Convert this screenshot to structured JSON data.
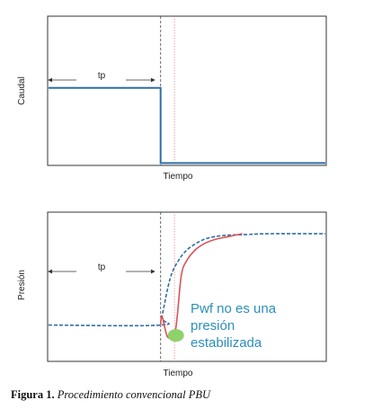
{
  "colors": {
    "rate_line": "#2f6fa6",
    "pressure_ideal": "#2f6fa6",
    "pressure_actual": "#d9545a",
    "shutin_marker": "#444444",
    "stabilization_marker": "#e58a8a",
    "annotation_text": "#2c8fb9",
    "annotation_dot": "#8fd16a",
    "frame": "#333333"
  },
  "chart_data": [
    {
      "type": "line",
      "title": "",
      "xlabel": "Tiempo",
      "ylabel": "Caudal",
      "ticks": "none",
      "grid": false,
      "x_domain": [
        0,
        1
      ],
      "y_domain": [
        0,
        1
      ],
      "shut_in_time": 0.405,
      "stabilization_time": 0.455,
      "tp_label": "tp",
      "series": [
        {
          "role": "caudal",
          "x": [
            0,
            0.405,
            0.405,
            1
          ],
          "y": [
            0.52,
            0.52,
            0.01,
            0.01
          ]
        }
      ]
    },
    {
      "type": "line",
      "title": "",
      "xlabel": "Tiempo",
      "ylabel": "Presión",
      "ticks": "none",
      "grid": false,
      "x_domain": [
        0,
        1
      ],
      "y_domain": [
        0,
        1
      ],
      "shut_in_time": 0.405,
      "stabilization_time": 0.455,
      "tp_label": "tp",
      "annotation": {
        "lines": [
          "Pwf  no es una",
          "presión",
          "estabilizada"
        ],
        "point": {
          "x": 0.46,
          "y": 0.17
        }
      },
      "series": [
        {
          "role": "ideal",
          "style": "dashed",
          "x": [
            0,
            0.405,
            0.41,
            0.44,
            0.47,
            0.5,
            0.53,
            0.56,
            0.6,
            0.65,
            0.72,
            0.8,
            1
          ],
          "y": [
            0.24,
            0.24,
            0.3,
            0.56,
            0.68,
            0.75,
            0.79,
            0.82,
            0.84,
            0.85,
            0.855,
            0.86,
            0.86
          ]
        },
        {
          "role": "real",
          "style": "solid",
          "x": [
            0.405,
            0.41,
            0.43,
            0.455,
            0.465,
            0.48,
            0.5,
            0.53,
            0.56,
            0.6,
            0.65,
            0.7
          ],
          "y": [
            0.24,
            0.3,
            0.16,
            0.18,
            0.3,
            0.58,
            0.68,
            0.75,
            0.79,
            0.82,
            0.84,
            0.86
          ]
        }
      ]
    }
  ],
  "caption": {
    "label": "Figura 1.",
    "text": "Procedimiento convencional PBU"
  }
}
